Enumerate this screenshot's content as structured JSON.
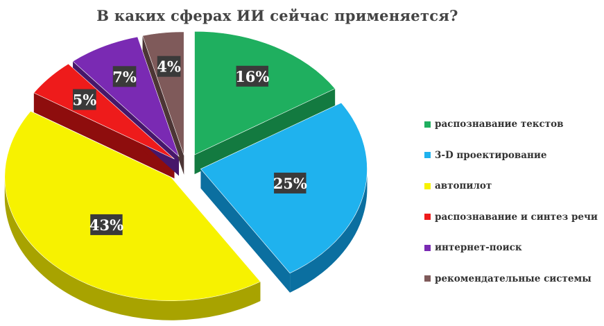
{
  "chart_data": {
    "type": "pie",
    "title": "В каких сферах ИИ сейчас применяется?",
    "style": "3d-exploded",
    "legend_position": "right",
    "slices": [
      {
        "label": "распознавание текстов",
        "value": 16,
        "display": "16%",
        "color": "#1FAF5F",
        "side": "#137A40"
      },
      {
        "label": "3-D проектирование",
        "value": 25,
        "display": "25%",
        "color": "#1FB2EE",
        "side": "#0B6FA0"
      },
      {
        "label": "автопилот",
        "value": 43,
        "display": "43%",
        "color": "#F7F200",
        "side": "#A8A300"
      },
      {
        "label": "распознавание и синтез речи",
        "value": 5,
        "display": "5%",
        "color": "#EE1B1B",
        "side": "#8E0D0D"
      },
      {
        "label": "интернет-поиск",
        "value": 7,
        "display": "7%",
        "color": "#7A2AB3",
        "side": "#46176A"
      },
      {
        "label": "рекомендательные системы",
        "value": 4,
        "display": "4%",
        "color": "#7F5A5A",
        "side": "#4C3535"
      }
    ]
  }
}
